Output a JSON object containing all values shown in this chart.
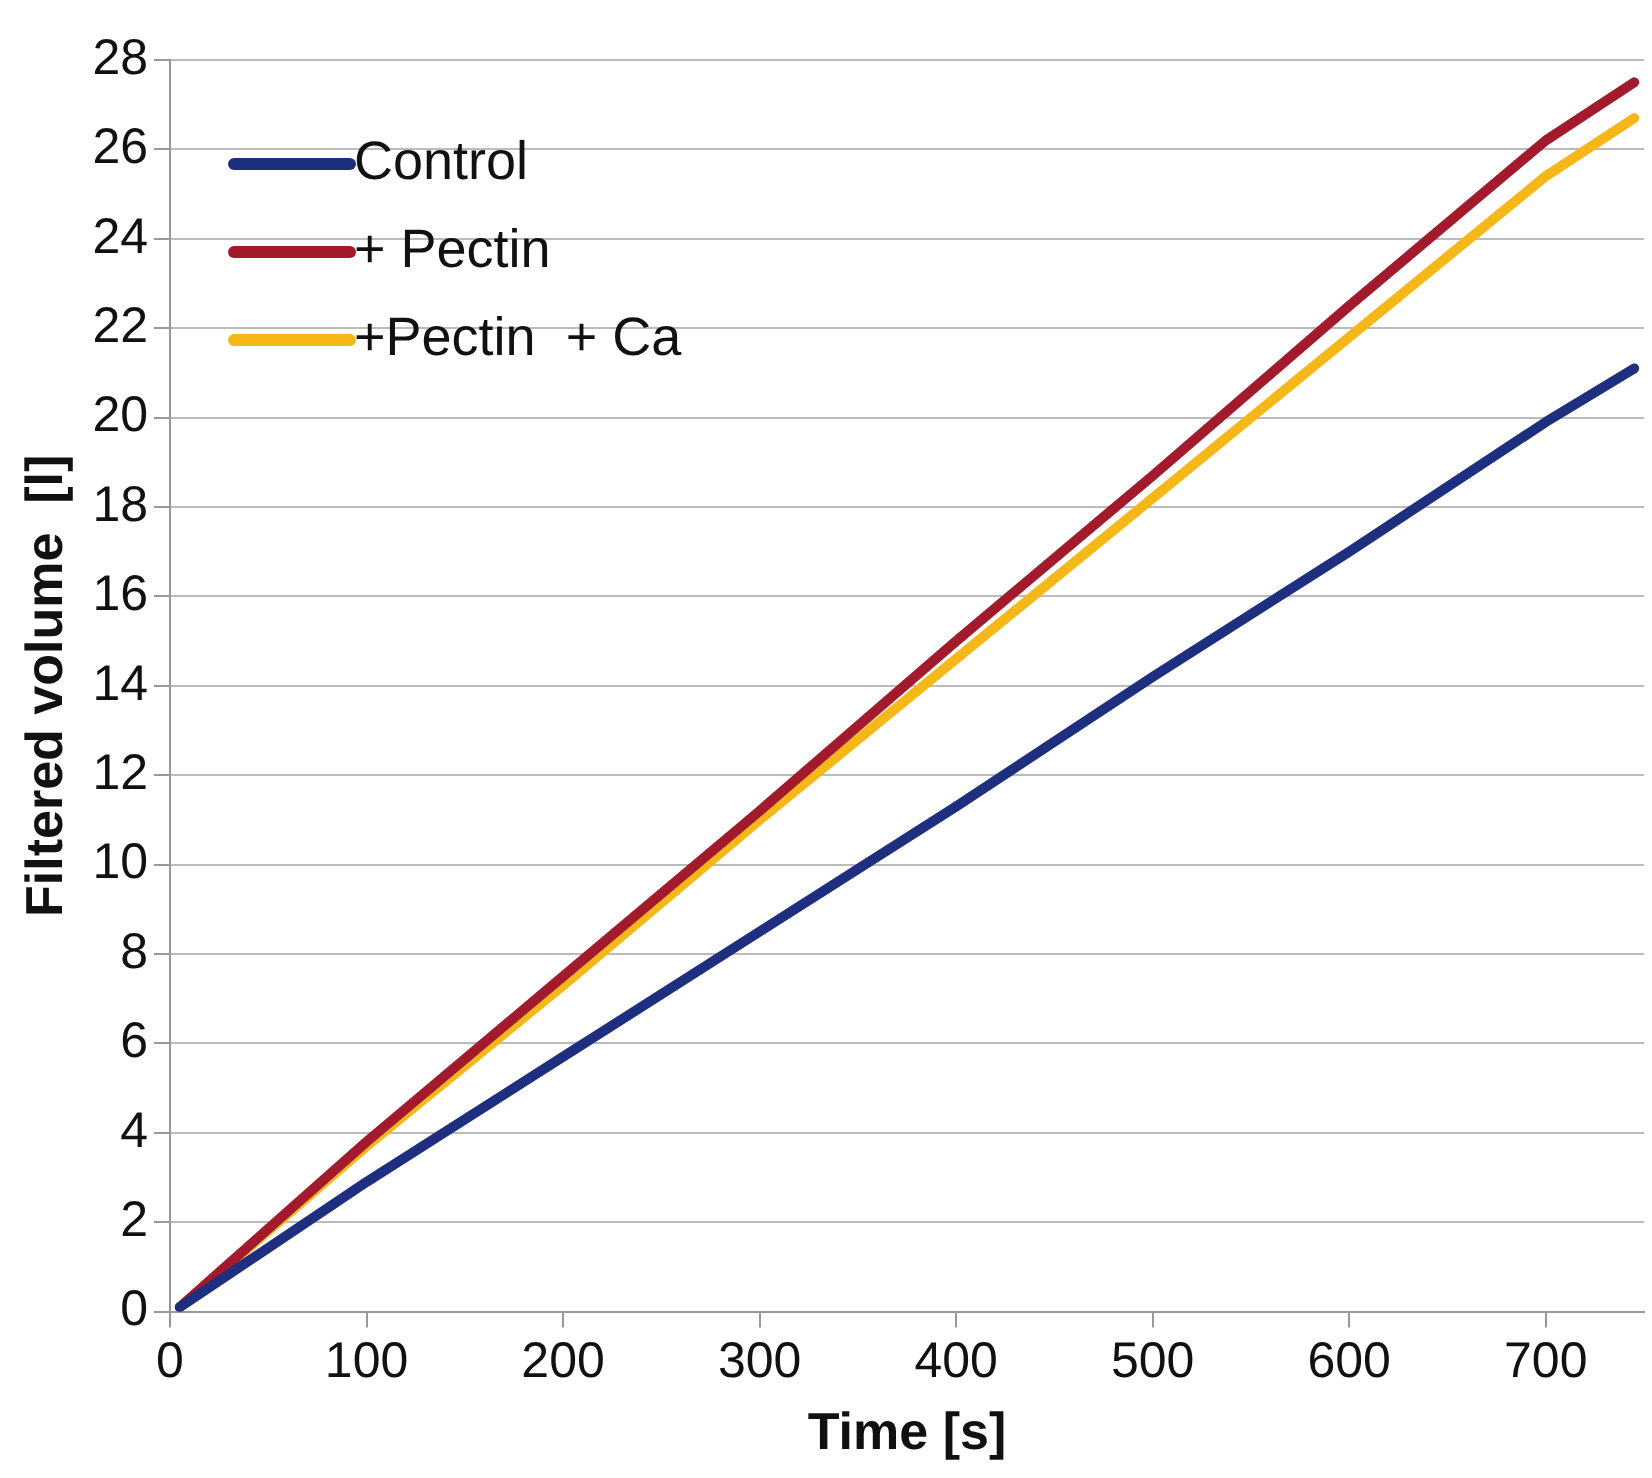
{
  "chart_data": {
    "type": "line",
    "xlabel": "Time [s]",
    "ylabel": "Filtered volume  [l]",
    "x": [
      5,
      100,
      200,
      300,
      400,
      500,
      600,
      700,
      745
    ],
    "series": [
      {
        "name": "Control",
        "color": "#1f2f7f",
        "values": [
          0.1,
          2.9,
          5.7,
          8.5,
          11.3,
          14.2,
          17.0,
          19.9,
          21.1
        ]
      },
      {
        "name": "+ Pectin",
        "color": "#a31a2c",
        "values": [
          0.1,
          3.8,
          7.5,
          11.2,
          15.0,
          18.7,
          22.5,
          26.2,
          27.5
        ]
      },
      {
        "name": "+Pectin  + Ca",
        "color": "#f5b818",
        "values": [
          0.1,
          3.7,
          7.3,
          11.0,
          14.6,
          18.2,
          21.8,
          25.4,
          26.7
        ]
      }
    ],
    "xlim": [
      0,
      750
    ],
    "xticks": [
      0,
      100,
      200,
      300,
      400,
      500,
      600,
      700
    ],
    "ylim": [
      0,
      28
    ],
    "yticks": [
      0,
      2,
      4,
      6,
      8,
      10,
      12,
      14,
      16,
      18,
      20,
      22,
      24,
      26,
      28
    ],
    "grid": "y",
    "legend": "top left",
    "marker": "none",
    "line_style": "solid"
  }
}
